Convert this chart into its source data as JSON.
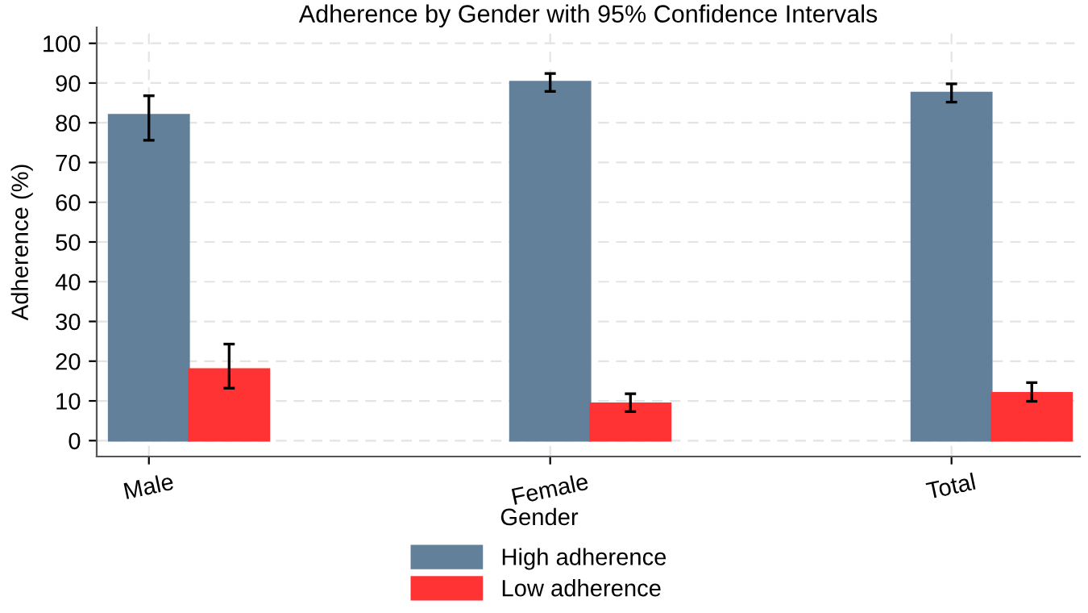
{
  "chart_data": {
    "type": "bar",
    "title": "Adherence by Gender with 95% Confidence Intervals",
    "xlabel": "Gender",
    "ylabel": "Adherence (%)",
    "categories": [
      "Male",
      "Female",
      "Total"
    ],
    "series": [
      {
        "name": "High adherence",
        "color": "#63809a",
        "values": [
          82,
          90.3,
          87.6
        ],
        "errors": [
          [
            75.6,
            86.8
          ],
          [
            87.9,
            92.4
          ],
          [
            85.2,
            89.8
          ]
        ]
      },
      {
        "name": "Low adherence",
        "color": "#ff3333",
        "values": [
          18,
          9.4,
          12
        ],
        "errors": [
          [
            13.2,
            24.3
          ],
          [
            7.3,
            11.8
          ],
          [
            9.9,
            14.6
          ]
        ]
      }
    ],
    "ylim": [
      -4,
      104
    ],
    "yticks": [
      0,
      10,
      20,
      30,
      40,
      50,
      60,
      70,
      80,
      90,
      100
    ],
    "grid": true,
    "legend": "bottom"
  }
}
